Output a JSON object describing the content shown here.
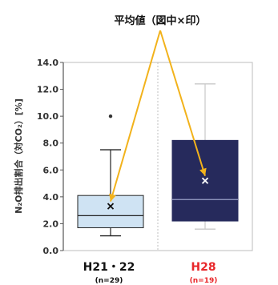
{
  "chart_data": {
    "type": "box",
    "title": "",
    "ylabel": "N₂O排出割合（対CO₂）[%]",
    "ylim": [
      0,
      14
    ],
    "yticks": [
      0.0,
      2.0,
      4.0,
      6.0,
      8.0,
      10.0,
      12.0,
      14.0
    ],
    "ytick_labels": [
      "0.0",
      "2.0",
      "4.0",
      "6.0",
      "8.0",
      "10.0",
      "12.0",
      "14.0"
    ],
    "annotation": "平均値（図中×印）",
    "colors": {
      "box1_fill": "#cfe3f3",
      "box1_stroke": "#7a9bb5",
      "box2_fill": "#262a5c",
      "box2_median": "#9aa0c8",
      "label2": "#e8272a",
      "arrow": "#f2b21b"
    },
    "groups": [
      {
        "label": "H21・22",
        "n_label": "(n=29)",
        "whisker_low": 1.1,
        "q1": 1.7,
        "median": 2.6,
        "q3": 4.1,
        "whisker_high": 7.5,
        "mean": 3.3,
        "outliers": [
          10.0
        ],
        "label_color": "#111111"
      },
      {
        "label": "H28",
        "n_label": "(n=19)",
        "whisker_low": 1.6,
        "q1": 2.2,
        "median": 3.8,
        "q3": 8.2,
        "whisker_high": 12.4,
        "mean": 5.2,
        "outliers": [],
        "label_color": "#e8272a"
      }
    ]
  }
}
